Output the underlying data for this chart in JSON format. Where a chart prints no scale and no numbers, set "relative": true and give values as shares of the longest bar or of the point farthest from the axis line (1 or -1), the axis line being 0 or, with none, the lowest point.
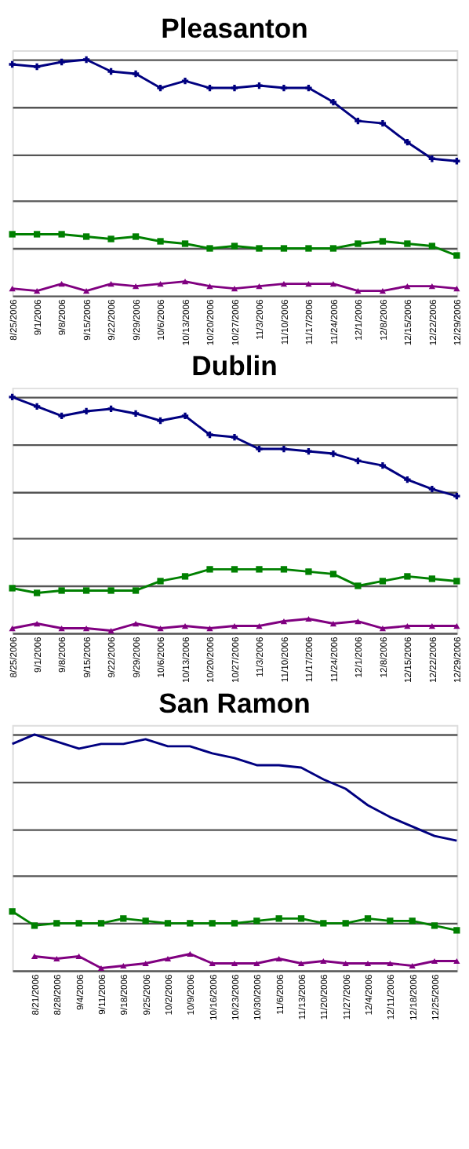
{
  "chart_data": [
    {
      "type": "line",
      "title": "Pleasanton",
      "relative": true,
      "grid": "y",
      "tick_labels": "x",
      "categories": [
        "8/25/2006",
        "9/1/2006",
        "9/8/2006",
        "9/15/2006",
        "9/22/2006",
        "9/29/2006",
        "10/6/2006",
        "10/13/2006",
        "10/20/2006",
        "10/27/2006",
        "11/3/2006",
        "11/10/2006",
        "11/17/2006",
        "11/24/2006",
        "12/1/2006",
        "12/8/2006",
        "12/15/2006",
        "12/22/2006",
        "12/29/2006"
      ],
      "series": [
        {
          "color": "#000080",
          "marker": "cross",
          "values": [
            0.98,
            0.97,
            0.99,
            1.0,
            0.95,
            0.94,
            0.88,
            0.91,
            0.88,
            0.88,
            0.89,
            0.88,
            0.88,
            0.82,
            0.74,
            0.73,
            0.65,
            0.58,
            0.57
          ]
        },
        {
          "color": "#008000",
          "marker": "square",
          "values": [
            0.26,
            0.26,
            0.26,
            0.25,
            0.24,
            0.25,
            0.23,
            0.22,
            0.2,
            0.21,
            0.2,
            0.2,
            0.2,
            0.2,
            0.22,
            0.23,
            0.22,
            0.21,
            0.17
          ]
        },
        {
          "color": "#800080",
          "marker": "triangle",
          "values": [
            0.03,
            0.02,
            0.05,
            0.02,
            0.05,
            0.04,
            0.05,
            0.06,
            0.04,
            0.03,
            0.04,
            0.05,
            0.05,
            0.05,
            0.02,
            0.02,
            0.04,
            0.04,
            0.03
          ]
        }
      ]
    },
    {
      "type": "line",
      "title": "Dublin",
      "relative": true,
      "grid": "y",
      "tick_labels": "x",
      "categories": [
        "8/25/2006",
        "9/1/2006",
        "9/8/2006",
        "9/15/2006",
        "9/22/2006",
        "9/29/2006",
        "10/6/2006",
        "10/13/2006",
        "10/20/2006",
        "10/27/2006",
        "11/3/2006",
        "11/10/2006",
        "11/17/2006",
        "11/24/2006",
        "12/1/2006",
        "12/8/2006",
        "12/15/2006",
        "12/22/2006",
        "12/29/2006"
      ],
      "series": [
        {
          "color": "#000080",
          "marker": "cross",
          "values": [
            1.0,
            0.96,
            0.92,
            0.94,
            0.95,
            0.93,
            0.9,
            0.92,
            0.84,
            0.83,
            0.78,
            0.78,
            0.77,
            0.76,
            0.73,
            0.71,
            0.65,
            0.61,
            0.58
          ]
        },
        {
          "color": "#008000",
          "marker": "square",
          "values": [
            0.19,
            0.17,
            0.18,
            0.18,
            0.18,
            0.18,
            0.22,
            0.24,
            0.27,
            0.27,
            0.27,
            0.27,
            0.26,
            0.25,
            0.2,
            0.22,
            0.24,
            0.23,
            0.22
          ]
        },
        {
          "color": "#800080",
          "marker": "triangle",
          "values": [
            0.02,
            0.04,
            0.02,
            0.02,
            0.01,
            0.04,
            0.02,
            0.03,
            0.02,
            0.03,
            0.03,
            0.05,
            0.06,
            0.04,
            0.05,
            0.02,
            0.03,
            0.03,
            0.03
          ]
        }
      ]
    },
    {
      "type": "line",
      "title": "San Ramon",
      "relative": true,
      "grid": "y",
      "tick_labels": "x",
      "categories": [
        null,
        "8/21/2006",
        "8/28/2006",
        "9/4/2006",
        "9/11/2006",
        "9/18/2006",
        "9/25/2006",
        "10/2/2006",
        "10/9/2006",
        "10/16/2006",
        "10/23/2006",
        "10/30/2006",
        "11/6/2006",
        "11/13/2006",
        "11/20/2006",
        "11/27/2006",
        "12/4/2006",
        "12/11/2006",
        "12/18/2006",
        "12/25/2006",
        null
      ],
      "series": [
        {
          "color": "#000080",
          "marker": "none",
          "values": [
            0.96,
            1.0,
            0.97,
            0.94,
            0.96,
            0.96,
            0.98,
            0.95,
            0.95,
            0.92,
            0.9,
            0.87,
            0.87,
            0.86,
            0.81,
            0.77,
            0.7,
            0.65,
            0.61,
            0.57,
            0.55
          ]
        },
        {
          "color": "#008000",
          "marker": "square",
          "values": [
            0.25,
            0.19,
            0.2,
            0.2,
            0.2,
            0.22,
            0.21,
            0.2,
            0.2,
            0.2,
            0.2,
            0.21,
            0.22,
            0.22,
            0.2,
            0.2,
            0.22,
            0.21,
            0.21,
            0.19,
            0.17
          ]
        },
        {
          "color": "#800080",
          "marker": "triangle",
          "values": [
            null,
            0.06,
            0.05,
            0.06,
            0.01,
            0.02,
            0.03,
            0.05,
            0.07,
            0.03,
            0.03,
            0.03,
            0.05,
            0.03,
            0.04,
            0.03,
            0.03,
            0.03,
            0.02,
            0.04,
            0.04
          ]
        }
      ]
    }
  ]
}
